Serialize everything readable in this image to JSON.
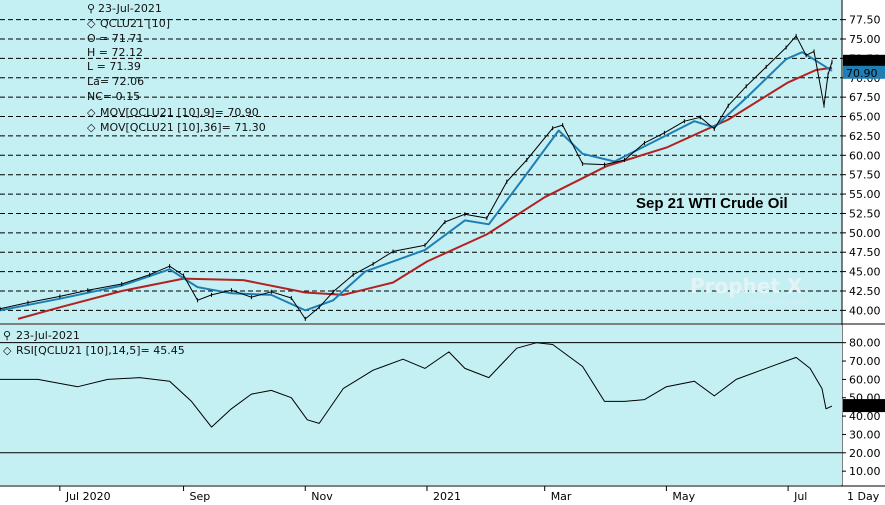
{
  "chart_data": [
    {
      "type": "line",
      "panel": "price",
      "title": "Sep 21 WTI Crude Oil",
      "watermark": "Prophet X",
      "watermark_sub": "powered by DTN",
      "info": {
        "date": "23-Jul-2021",
        "symbol": "QCLU21 [10]",
        "open": "O = 71.71",
        "high": "H = 72.12",
        "low": "L = 71.39",
        "last": "La= 72.06",
        "net_change": "NC= 0.15",
        "ma9_label": "MOV[QCLU21 [10],9]= 70.90",
        "ma36_label": "MOV[QCLU21 [10],36]= 71.30"
      },
      "y_ticks": [
        "77.50",
        "75.00",
        "72.50",
        "70.00",
        "67.50",
        "65.00",
        "62.50",
        "60.00",
        "57.50",
        "55.00",
        "52.50",
        "50.00",
        "47.50",
        "45.00",
        "42.50",
        "40.00"
      ],
      "ylim": [
        38.5,
        79
      ],
      "last_price_tag": "72.06",
      "ma_price_tag": "70.90",
      "x_ticks": [
        "Jul 2020",
        "Sep",
        "Nov",
        "2021",
        "Mar",
        "May",
        "Jul"
      ],
      "x_tick_positions": [
        "2020-07-01",
        "2020-09-01",
        "2020-11-01",
        "2021-01-01",
        "2021-03-01",
        "2021-05-01",
        "2021-07-01"
      ],
      "x_range": [
        "2020-06-01",
        "2021-07-23"
      ],
      "x_unit_label": "1 Day",
      "series": [
        {
          "name": "QCLU21 [10]",
          "color": "#000000",
          "points": [
            [
              "2020-06-01",
              40.2
            ],
            [
              "2020-06-15",
              41.0
            ],
            [
              "2020-07-01",
              41.8
            ],
            [
              "2020-07-15",
              42.6
            ],
            [
              "2020-08-01",
              43.4
            ],
            [
              "2020-08-15",
              44.6
            ],
            [
              "2020-08-25",
              45.7
            ],
            [
              "2020-09-01",
              44.5
            ],
            [
              "2020-09-08",
              41.3
            ],
            [
              "2020-09-15",
              42.0
            ],
            [
              "2020-09-25",
              42.6
            ],
            [
              "2020-10-05",
              41.7
            ],
            [
              "2020-10-15",
              42.4
            ],
            [
              "2020-10-25",
              41.6
            ],
            [
              "2020-11-01",
              38.9
            ],
            [
              "2020-11-08",
              40.4
            ],
            [
              "2020-11-15",
              42.4
            ],
            [
              "2020-11-25",
              44.6
            ],
            [
              "2020-12-05",
              46.0
            ],
            [
              "2020-12-15",
              47.6
            ],
            [
              "2020-12-31",
              48.4
            ],
            [
              "2021-01-10",
              51.4
            ],
            [
              "2021-01-20",
              52.4
            ],
            [
              "2021-01-31",
              51.9
            ],
            [
              "2021-02-10",
              56.6
            ],
            [
              "2021-02-20",
              59.4
            ],
            [
              "2021-03-05",
              63.5
            ],
            [
              "2021-03-10",
              63.9
            ],
            [
              "2021-03-20",
              58.9
            ],
            [
              "2021-03-31",
              58.8
            ],
            [
              "2021-04-10",
              59.4
            ],
            [
              "2021-04-20",
              61.6
            ],
            [
              "2021-04-30",
              62.9
            ],
            [
              "2021-05-10",
              64.4
            ],
            [
              "2021-05-18",
              64.9
            ],
            [
              "2021-05-25",
              63.4
            ],
            [
              "2021-06-01",
              66.4
            ],
            [
              "2021-06-10",
              68.9
            ],
            [
              "2021-06-20",
              71.4
            ],
            [
              "2021-06-30",
              73.9
            ],
            [
              "2021-07-05",
              75.4
            ],
            [
              "2021-07-10",
              72.9
            ],
            [
              "2021-07-14",
              73.4
            ],
            [
              "2021-07-19",
              66.4
            ],
            [
              "2021-07-21",
              70.4
            ],
            [
              "2021-07-23",
              72.06
            ]
          ]
        },
        {
          "name": "MOV[QCLU21 [10],9]",
          "color": "#1f7fb4",
          "points": [
            [
              "2020-06-01",
              40.0
            ],
            [
              "2020-07-01",
              41.5
            ],
            [
              "2020-08-01",
              43.2
            ],
            [
              "2020-08-25",
              45.3
            ],
            [
              "2020-09-08",
              43.0
            ],
            [
              "2020-09-25",
              42.2
            ],
            [
              "2020-10-15",
              42.0
            ],
            [
              "2020-11-01",
              40.0
            ],
            [
              "2020-11-15",
              41.3
            ],
            [
              "2020-12-01",
              45.0
            ],
            [
              "2020-12-31",
              47.8
            ],
            [
              "2021-01-20",
              51.6
            ],
            [
              "2021-02-01",
              51.1
            ],
            [
              "2021-02-20",
              57.6
            ],
            [
              "2021-03-08",
              63.2
            ],
            [
              "2021-03-20",
              60.2
            ],
            [
              "2021-04-05",
              59.2
            ],
            [
              "2021-04-25",
              61.8
            ],
            [
              "2021-05-15",
              64.4
            ],
            [
              "2021-05-25",
              63.6
            ],
            [
              "2021-06-10",
              67.4
            ],
            [
              "2021-06-30",
              72.4
            ],
            [
              "2021-07-08",
              73.3
            ],
            [
              "2021-07-15",
              72.2
            ],
            [
              "2021-07-23",
              70.9
            ]
          ]
        },
        {
          "name": "MOV[QCLU21 [10],36]",
          "color": "#b22222",
          "points": [
            [
              "2020-06-10",
              38.9
            ],
            [
              "2020-07-01",
              40.4
            ],
            [
              "2020-08-01",
              42.5
            ],
            [
              "2020-09-01",
              44.1
            ],
            [
              "2020-10-01",
              43.9
            ],
            [
              "2020-11-01",
              42.3
            ],
            [
              "2020-11-20",
              42.0
            ],
            [
              "2020-12-15",
              43.6
            ],
            [
              "2021-01-01",
              46.3
            ],
            [
              "2021-01-31",
              49.8
            ],
            [
              "2021-03-01",
              54.6
            ],
            [
              "2021-04-01",
              58.6
            ],
            [
              "2021-05-01",
              61.0
            ],
            [
              "2021-06-01",
              64.6
            ],
            [
              "2021-07-01",
              69.4
            ],
            [
              "2021-07-15",
              71.0
            ],
            [
              "2021-07-23",
              71.3
            ]
          ]
        }
      ]
    },
    {
      "type": "line",
      "panel": "rsi",
      "info": {
        "date": "23-Jul-2021",
        "rsi_label": "RSI[QCLU21 [10],14,5]= 45.45"
      },
      "y_ticks": [
        "80.00",
        "70.00",
        "60.00",
        "50.00",
        "40.00",
        "30.00",
        "20.00",
        "10.00"
      ],
      "ylim": [
        3,
        88
      ],
      "reference_lines": [
        80,
        20
      ],
      "last_value_tag": "45.45",
      "series": [
        {
          "name": "RSI[QCLU21 [10],14,5]",
          "color": "#000000",
          "points": [
            [
              "2020-06-01",
              60
            ],
            [
              "2020-06-20",
              60
            ],
            [
              "2020-07-10",
              56
            ],
            [
              "2020-07-25",
              60
            ],
            [
              "2020-08-10",
              61
            ],
            [
              "2020-08-25",
              59
            ],
            [
              "2020-09-05",
              48
            ],
            [
              "2020-09-15",
              34
            ],
            [
              "2020-09-25",
              44
            ],
            [
              "2020-10-05",
              52
            ],
            [
              "2020-10-15",
              54
            ],
            [
              "2020-10-25",
              50
            ],
            [
              "2020-11-02",
              38
            ],
            [
              "2020-11-08",
              36
            ],
            [
              "2020-11-20",
              55
            ],
            [
              "2020-12-05",
              65
            ],
            [
              "2020-12-20",
              71
            ],
            [
              "2020-12-31",
              66
            ],
            [
              "2021-01-12",
              75
            ],
            [
              "2021-01-20",
              66
            ],
            [
              "2021-02-01",
              61
            ],
            [
              "2021-02-15",
              77
            ],
            [
              "2021-02-25",
              80
            ],
            [
              "2021-03-05",
              79
            ],
            [
              "2021-03-20",
              67
            ],
            [
              "2021-03-31",
              48
            ],
            [
              "2021-04-10",
              48
            ],
            [
              "2021-04-20",
              49
            ],
            [
              "2021-05-01",
              56
            ],
            [
              "2021-05-15",
              59
            ],
            [
              "2021-05-25",
              51
            ],
            [
              "2021-06-05",
              60
            ],
            [
              "2021-06-25",
              68
            ],
            [
              "2021-07-05",
              72
            ],
            [
              "2021-07-12",
              66
            ],
            [
              "2021-07-18",
              55
            ],
            [
              "2021-07-20",
              44
            ],
            [
              "2021-07-23",
              45.45
            ]
          ]
        }
      ]
    }
  ]
}
